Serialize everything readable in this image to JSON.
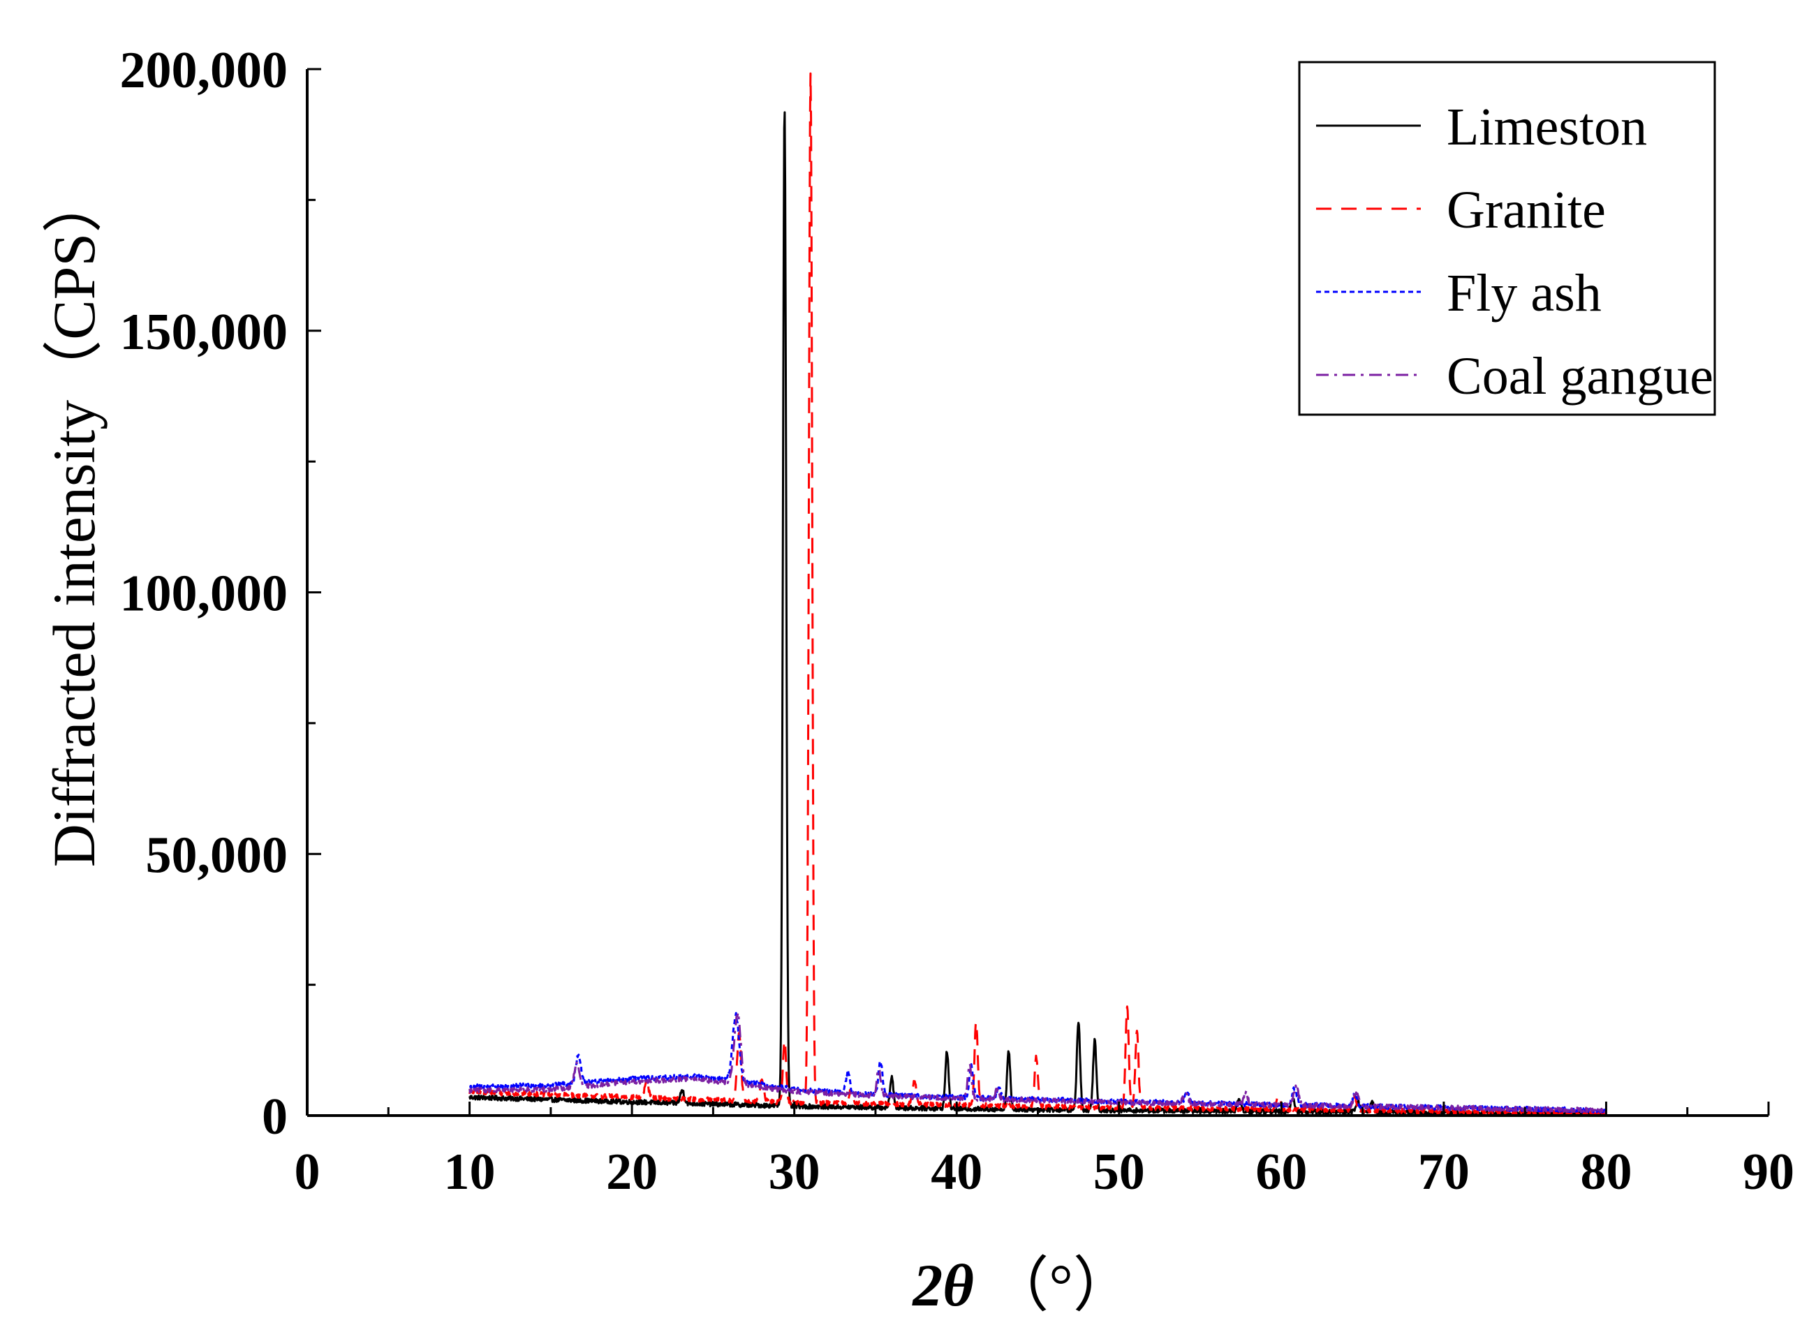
{
  "chart_data": {
    "type": "line",
    "title": "",
    "xlabel": {
      "main": "2θ",
      "unit": "（°）"
    },
    "ylabel": "Diffracted intensity（CPS）",
    "xlim": [
      0,
      90
    ],
    "ylim": [
      0,
      200000
    ],
    "xticks": [
      0,
      10,
      20,
      30,
      40,
      50,
      60,
      70,
      80,
      90
    ],
    "xtick_labels": [
      "0",
      "10",
      "20",
      "30",
      "40",
      "50",
      "60",
      "70",
      "80",
      "90"
    ],
    "yticks": [
      0,
      50000,
      100000,
      150000,
      200000
    ],
    "ytick_labels": [
      "0",
      "50,000",
      "100,000",
      "150,000",
      "200,000"
    ],
    "legend_position": "top-right",
    "series": [
      {
        "name": "Limeston",
        "color": "#000000",
        "dash": "solid",
        "baseline": [
          [
            10,
            3500
          ],
          [
            20,
            2600
          ],
          [
            30,
            1800
          ],
          [
            40,
            1300
          ],
          [
            50,
            1000
          ],
          [
            60,
            800
          ],
          [
            70,
            500
          ],
          [
            80,
            300
          ]
        ],
        "peaks": [
          [
            23.1,
            2500,
            0.12
          ],
          [
            29.4,
            191000,
            0.1
          ],
          [
            36.0,
            6000,
            0.1
          ],
          [
            39.4,
            11000,
            0.1
          ],
          [
            43.2,
            11000,
            0.1
          ],
          [
            47.5,
            17000,
            0.1
          ],
          [
            48.5,
            13500,
            0.1
          ],
          [
            57.4,
            2000,
            0.12
          ],
          [
            60.7,
            2500,
            0.12
          ],
          [
            64.7,
            2000,
            0.12
          ],
          [
            65.6,
            1800,
            0.12
          ]
        ]
      },
      {
        "name": "Granite",
        "color": "#ff0000",
        "dash": "dashed",
        "baseline": [
          [
            10,
            4500
          ],
          [
            20,
            3500
          ],
          [
            30,
            2500
          ],
          [
            40,
            2000
          ],
          [
            50,
            1500
          ],
          [
            60,
            1200
          ],
          [
            70,
            800
          ],
          [
            80,
            500
          ]
        ],
        "peaks": [
          [
            20.9,
            3000,
            0.12
          ],
          [
            26.6,
            13000,
            0.12
          ],
          [
            28.0,
            4000,
            0.12
          ],
          [
            29.4,
            12000,
            0.1
          ],
          [
            31.0,
            197000,
            0.1
          ],
          [
            33.5,
            2500,
            0.12
          ],
          [
            37.4,
            4500,
            0.12
          ],
          [
            41.2,
            16000,
            0.1
          ],
          [
            44.9,
            9500,
            0.1
          ],
          [
            50.5,
            19000,
            0.1
          ],
          [
            51.1,
            14500,
            0.1
          ],
          [
            59.8,
            2500,
            0.12
          ],
          [
            64.5,
            2500,
            0.12
          ]
        ]
      },
      {
        "name": "Fly ash",
        "color": "#0000ff",
        "dash": "dotted",
        "baseline": [
          [
            10,
            5500
          ],
          [
            15,
            5800
          ],
          [
            20,
            7000
          ],
          [
            24,
            7500
          ],
          [
            27,
            6500
          ],
          [
            30,
            5000
          ],
          [
            35,
            4000
          ],
          [
            40,
            3500
          ],
          [
            50,
            2700
          ],
          [
            60,
            2100
          ],
          [
            70,
            1500
          ],
          [
            80,
            1000
          ]
        ],
        "peaks": [
          [
            16.7,
            5500,
            0.15
          ],
          [
            26.4,
            12500,
            0.2
          ],
          [
            33.3,
            4000,
            0.12
          ],
          [
            35.3,
            6500,
            0.12
          ],
          [
            40.9,
            6000,
            0.12
          ],
          [
            42.6,
            1800,
            0.12
          ],
          [
            54.2,
            1800,
            0.15
          ],
          [
            60.8,
            3000,
            0.15
          ],
          [
            64.5,
            2000,
            0.15
          ]
        ]
      },
      {
        "name": "Coal gangue",
        "color": "#7b1fa2",
        "dash": "dashdot",
        "baseline": [
          [
            10,
            4800
          ],
          [
            15,
            5000
          ],
          [
            20,
            6500
          ],
          [
            24,
            7000
          ],
          [
            27,
            5800
          ],
          [
            30,
            4600
          ],
          [
            35,
            3800
          ],
          [
            40,
            3300
          ],
          [
            50,
            2500
          ],
          [
            60,
            2000
          ],
          [
            70,
            1500
          ],
          [
            80,
            1000
          ]
        ],
        "peaks": [
          [
            16.6,
            4500,
            0.15
          ],
          [
            26.5,
            13500,
            0.2
          ],
          [
            35.2,
            5000,
            0.12
          ],
          [
            40.8,
            6500,
            0.12
          ],
          [
            42.5,
            2000,
            0.12
          ],
          [
            54.1,
            2000,
            0.15
          ],
          [
            57.8,
            2500,
            0.12
          ],
          [
            60.9,
            3500,
            0.15
          ],
          [
            64.6,
            2500,
            0.15
          ]
        ]
      }
    ]
  }
}
